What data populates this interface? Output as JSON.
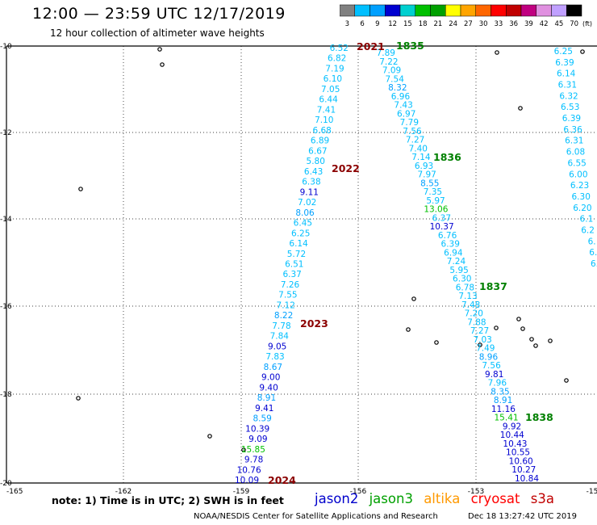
{
  "header": {
    "title": "12:00 — 23:59 UTC 12/17/2019",
    "subtitle": "12 hour collection of altimeter wave heights"
  },
  "colorbar": {
    "ticks": [
      "3",
      "6",
      "9",
      "12",
      "15",
      "18",
      "21",
      "24",
      "27",
      "30",
      "33",
      "36",
      "39",
      "42",
      "45",
      "70"
    ],
    "unit": "(ft)",
    "colors": [
      "#808080",
      "#00bfff",
      "#00a0ff",
      "#0000d0",
      "#00d0d0",
      "#00c000",
      "#00a000",
      "#ffff00",
      "#ffa500",
      "#ff6600",
      "#ff0000",
      "#c00000",
      "#c00080",
      "#e090e0",
      "#c0a0ff",
      "#000000"
    ]
  },
  "map": {
    "lon_ticks": [
      "-165",
      "-162",
      "-159",
      "-156",
      "-153",
      "-15"
    ],
    "lat_ticks": [
      "-10",
      "-12",
      "-14",
      "-16",
      "-18",
      "-20"
    ],
    "passes": [
      {
        "label": "2021",
        "color": "#8b0000"
      },
      {
        "label": "1835",
        "color": "#008000"
      },
      {
        "label": "1836",
        "color": "#008000"
      },
      {
        "label": "2022",
        "color": "#8b0000"
      },
      {
        "label": "1837",
        "color": "#008000"
      },
      {
        "label": "2023",
        "color": "#8b0000"
      },
      {
        "label": "1838",
        "color": "#008000"
      },
      {
        "label": "2024",
        "color": "#8b0000"
      }
    ],
    "track_a": [
      "6.52",
      "6.82",
      "7.19",
      "6.10",
      "7.05",
      "6.44",
      "7.41",
      "7.10",
      "6.68",
      "6.89",
      "6.67",
      "5.80",
      "6.43",
      "6.38",
      "9.11",
      "7.02",
      "8.06",
      "6.45",
      "6.25",
      "6.14",
      "5.72",
      "6.51",
      "6.37",
      "7.26",
      "7.55",
      "7.12",
      "8.22",
      "7.78",
      "7.84",
      "9.05",
      "7.83",
      "8.67",
      "9.00",
      "9.40",
      "8.91",
      "9.41",
      "8.59",
      "10.39",
      "9.09",
      "15.85",
      "9.78",
      "10.76",
      "10.09"
    ],
    "track_b": [
      "7.89",
      "7.22",
      "7.09",
      "7.54",
      "8.32",
      "6.96",
      "7.43",
      "6.97",
      "7.79",
      "7.56",
      "7.27",
      "7.40",
      "7.14",
      "6.93",
      "7.97",
      "8.55",
      "7.35",
      "5.97",
      "13.06",
      "6.37",
      "10.37",
      "6.76",
      "6.39",
      "6.94",
      "7.24",
      "5.95",
      "6.30",
      "6.78",
      "7.13",
      "7.48",
      "7.20",
      "7.88",
      "7.27",
      "7.03",
      "7.49",
      "8.96",
      "7.56",
      "9.81",
      "7.96",
      "8.35",
      "8.91",
      "11.16",
      "15.41",
      "9.92",
      "10.44",
      "10.43",
      "10.55",
      "10.60",
      "10.27",
      "10.84"
    ],
    "track_c": [
      "6.25",
      "6.39",
      "6.14",
      "6.31",
      "6.32",
      "6.53",
      "6.39",
      "6.36",
      "6.31",
      "6.08",
      "6.55",
      "6.00",
      "6.23",
      "6.30",
      "6.20",
      "6.1",
      "6.2",
      "6.",
      "6.",
      "6."
    ],
    "colors": [
      "#00bfff",
      "#00a0ff",
      "#0000d0",
      "#00d0d0",
      "#00c000"
    ]
  },
  "note": "note: 1) Time is in UTC; 2) SWH is in feet",
  "sat_legend": [
    {
      "name": "jason2",
      "color": "#0000cc"
    },
    {
      "name": "jason3",
      "color": "#00a000"
    },
    {
      "name": "altika",
      "color": "#ff9900"
    },
    {
      "name": "cryosat",
      "color": "#ff0000"
    },
    {
      "name": "s3a",
      "color": "#c00000"
    }
  ],
  "footer": {
    "credit": "NOAA/NESDIS Center for Satellite Applications and Research",
    "timestamp": "Dec 18 13:27:42 UTC 2019"
  }
}
